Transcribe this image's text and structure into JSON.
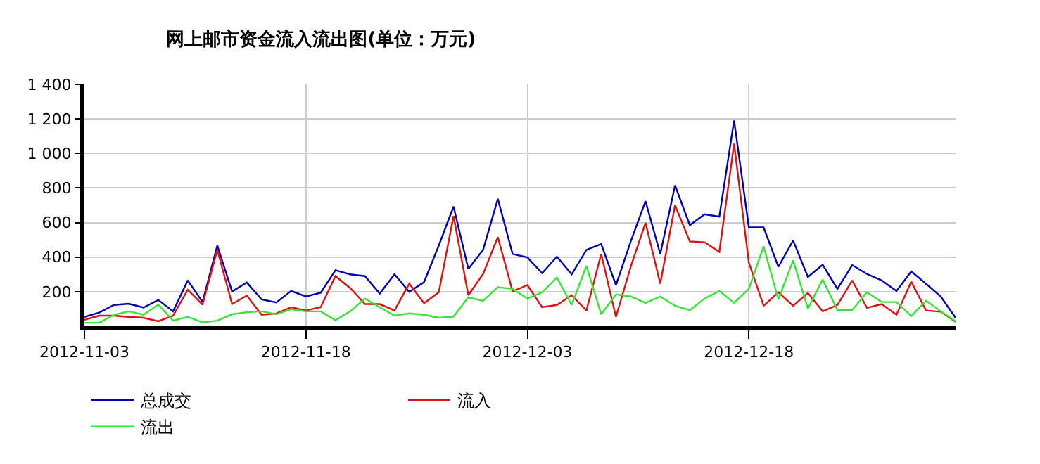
{
  "chart_data": {
    "type": "line",
    "title": "网上邮市资金流入流出图(单位：万元)",
    "x": [
      "2012-11-03",
      "2012-11-04",
      "2012-11-05",
      "2012-11-06",
      "2012-11-07",
      "2012-11-08",
      "2012-11-09",
      "2012-11-10",
      "2012-11-11",
      "2012-11-12",
      "2012-11-13",
      "2012-11-14",
      "2012-11-15",
      "2012-11-16",
      "2012-11-17",
      "2012-11-18",
      "2012-11-19",
      "2012-11-20",
      "2012-11-21",
      "2012-11-22",
      "2012-11-23",
      "2012-11-24",
      "2012-11-25",
      "2012-11-26",
      "2012-11-27",
      "2012-11-28",
      "2012-11-29",
      "2012-11-30",
      "2012-12-01",
      "2012-12-02",
      "2012-12-03",
      "2012-12-04",
      "2012-12-05",
      "2012-12-06",
      "2012-12-07",
      "2012-12-08",
      "2012-12-09",
      "2012-12-10",
      "2012-12-11",
      "2012-12-12",
      "2012-12-13",
      "2012-12-14",
      "2012-12-15",
      "2012-12-16",
      "2012-12-17",
      "2012-12-18",
      "2012-12-19",
      "2012-12-20",
      "2012-12-21",
      "2012-12-22",
      "2012-12-23",
      "2012-12-24",
      "2012-12-25",
      "2012-12-26",
      "2012-12-27",
      "2012-12-28",
      "2012-12-29",
      "2012-12-30",
      "2012-12-31",
      "2013-01-01"
    ],
    "series": [
      {
        "name": "总成交",
        "color": "#0000b0",
        "values": [
          54,
          79,
          123,
          130,
          108,
          152,
          86,
          265,
          140,
          467,
          201,
          253,
          155,
          138,
          204,
          172,
          194,
          324,
          300,
          290,
          189,
          300,
          199,
          255,
          467,
          693,
          332,
          442,
          737,
          418,
          398,
          307,
          403,
          300,
          442,
          476,
          238,
          491,
          724,
          418,
          815,
          585,
          648,
          634,
          1191,
          572,
          572,
          344,
          496,
          285,
          356,
          216,
          354,
          302,
          265,
          204,
          317,
          246,
          172,
          49
        ]
      },
      {
        "name": "流入",
        "color": "#e01010",
        "values": [
          37,
          61,
          61,
          54,
          49,
          29,
          61,
          211,
          125,
          442,
          128,
          177,
          66,
          74,
          110,
          91,
          110,
          290,
          221,
          128,
          128,
          91,
          246,
          133,
          196,
          638,
          179,
          302,
          516,
          201,
          238,
          110,
          123,
          179,
          91,
          418,
          54,
          344,
          599,
          246,
          700,
          491,
          486,
          430,
          1056,
          368,
          118,
          196,
          118,
          192,
          86,
          123,
          265,
          106,
          128,
          66,
          258,
          91,
          84,
          25
        ]
      },
      {
        "name": "流出",
        "color": "#33e633",
        "values": [
          20,
          20,
          66,
          86,
          66,
          125,
          32,
          54,
          22,
          32,
          69,
          81,
          86,
          69,
          98,
          86,
          86,
          34,
          86,
          160,
          110,
          61,
          74,
          66,
          49,
          56,
          167,
          147,
          226,
          216,
          160,
          196,
          282,
          123,
          349,
          69,
          184,
          172,
          135,
          172,
          118,
          93,
          160,
          204,
          135,
          216,
          462,
          155,
          381,
          103,
          270,
          93,
          93,
          196,
          140,
          140,
          59,
          147,
          86,
          29
        ]
      }
    ],
    "xlim": [
      "2012-11-03",
      "2013-01-01"
    ],
    "xticks": [
      "2012-11-03",
      "2012-11-18",
      "2012-12-03",
      "2012-12-18"
    ],
    "ylim": [
      0,
      1400
    ],
    "yticks": [
      200,
      400,
      600,
      800,
      {
        "value": 1000,
        "label": "1 000"
      },
      {
        "value": 1200,
        "label": "1 200"
      },
      {
        "value": 1400,
        "label": "1 400"
      }
    ],
    "grid": true,
    "legend": "bottom",
    "marker": "none",
    "line_style": "solid"
  }
}
